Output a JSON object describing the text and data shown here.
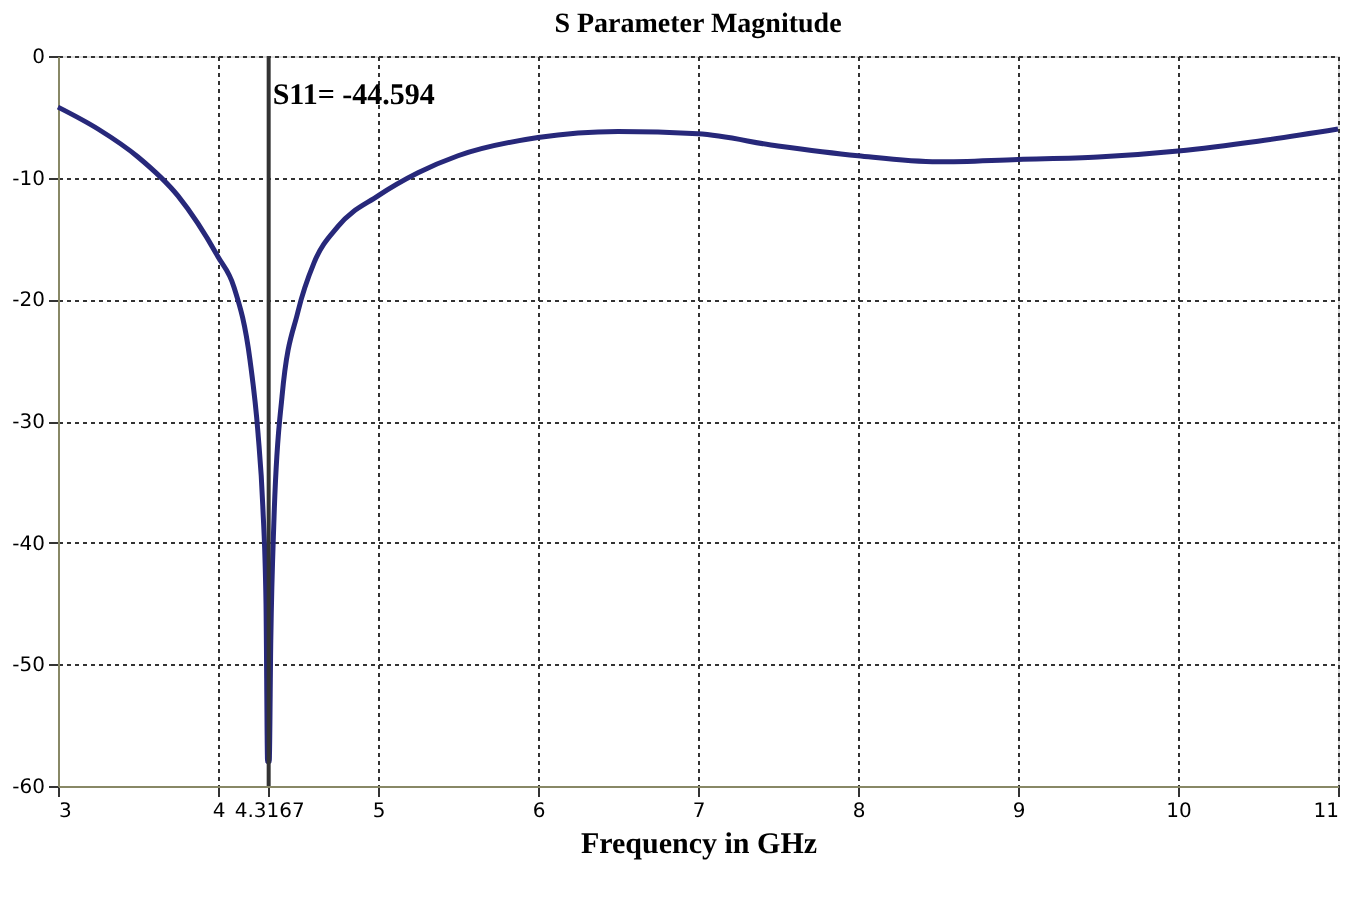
{
  "chart_data": {
    "type": "line",
    "title": "S Parameter Magnitude",
    "xlabel": "Frequency in GHz",
    "x": [
      3,
      3.25,
      3.5,
      3.75,
      4.0,
      4.1,
      4.2,
      4.25,
      4.28,
      4.3,
      4.31,
      4.32,
      4.33,
      4.35,
      4.4,
      4.5,
      4.6,
      4.75,
      5.0,
      5.25,
      5.5,
      6.0,
      6.5,
      7.0,
      7.5,
      8.0,
      8.5,
      9.0,
      9.5,
      10.0,
      10.5,
      11
    ],
    "series": [
      {
        "color": "#27287a",
        "values": [
          -4.2,
          -6,
          -8.3,
          -11.5,
          -16.5,
          -19,
          -25,
          -31,
          -37,
          -45,
          -58,
          -58,
          -48,
          -38,
          -28,
          -21,
          -17,
          -14,
          -11.5,
          -9.6,
          -8.2,
          -6.7,
          -6.2,
          -6.4,
          -7.4,
          -8.2,
          -8.7,
          -8.5,
          -8.3,
          -7.8,
          -7.0,
          -6.0
        ]
      }
    ],
    "xlim": [
      3,
      11
    ],
    "ylim": [
      -60,
      0
    ],
    "xticks": [
      3,
      4,
      {
        "value": 4.3167,
        "label": "4.3167"
      },
      5,
      6,
      7,
      8,
      9,
      10,
      11
    ],
    "yticks": [
      -60,
      -50,
      -40,
      -30,
      -20,
      -10,
      0
    ],
    "ref_lines": [
      {
        "axis": "x",
        "value": 4.3167,
        "color": "#333333"
      }
    ],
    "annotations": [
      "S11= -44.594"
    ],
    "grid": true,
    "line_style": "solid",
    "marker": "none"
  }
}
